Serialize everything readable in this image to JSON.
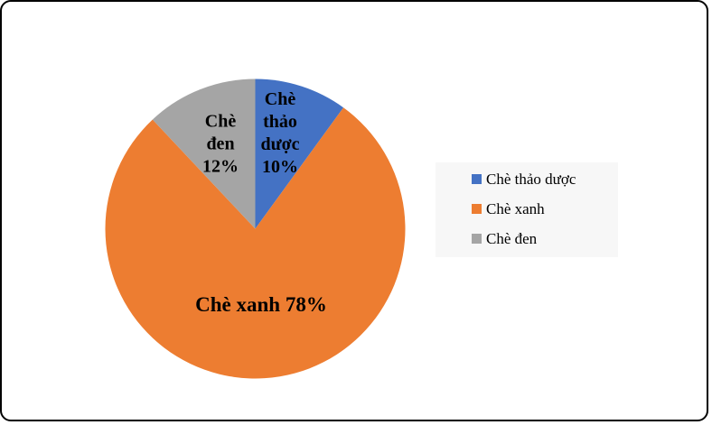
{
  "canvas": {
    "background": "#ffffff",
    "border_color": "#000000"
  },
  "chart_data": {
    "type": "pie",
    "categories": [
      "Chè thảo dược",
      "Chè xanh",
      "Chè đen"
    ],
    "values": [
      10,
      78,
      12
    ],
    "unit": "%",
    "colors": [
      "#4472C4",
      "#ED7D31",
      "#A5A5A5"
    ],
    "start_angle_deg": 0,
    "direction": "clockwise",
    "legend_position": "right",
    "title": "",
    "slice_labels": [
      {
        "text": "Chè\nthảo\ndược\n10%"
      },
      {
        "text": "Chè xanh 78%"
      },
      {
        "text": "Chè\nđen\n12%"
      }
    ]
  },
  "legend": {
    "items": [
      {
        "label": "Chè thảo dược",
        "color": "#4472C4"
      },
      {
        "label": "Chè xanh",
        "color": "#ED7D31"
      },
      {
        "label": "Chè đen",
        "color": "#A5A5A5"
      }
    ]
  }
}
